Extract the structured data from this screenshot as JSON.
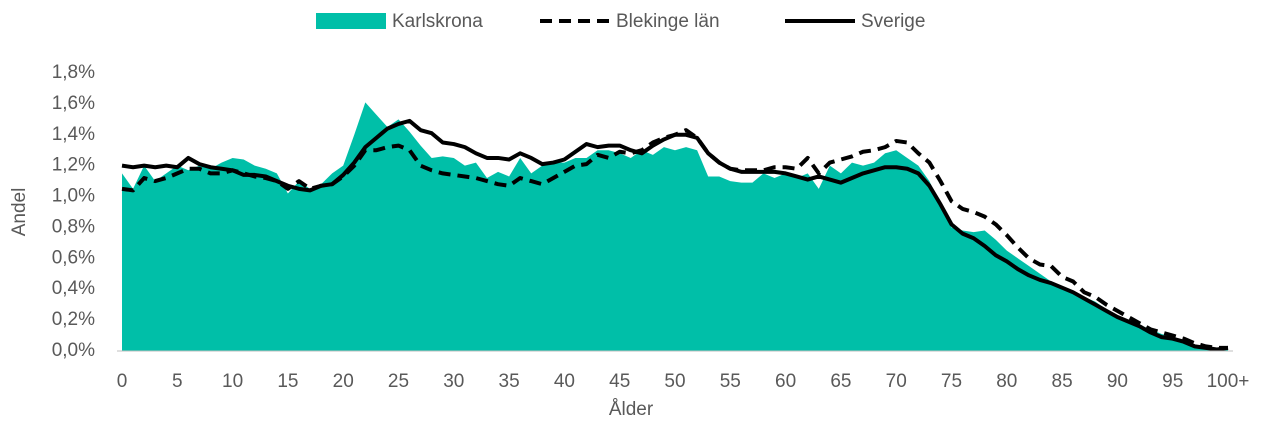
{
  "chart_data": {
    "type": "line",
    "x_label": "Ålder",
    "y_label": "Andel",
    "categories": [
      "0",
      null,
      null,
      null,
      null,
      "5",
      null,
      null,
      null,
      null,
      "10",
      null,
      null,
      null,
      null,
      "15",
      null,
      null,
      null,
      null,
      "20",
      null,
      null,
      null,
      null,
      "25",
      null,
      null,
      null,
      null,
      "30",
      null,
      null,
      null,
      null,
      "35",
      null,
      null,
      null,
      null,
      "40",
      null,
      null,
      null,
      null,
      "45",
      null,
      null,
      null,
      null,
      "50",
      null,
      null,
      null,
      null,
      "55",
      null,
      null,
      null,
      null,
      "60",
      null,
      null,
      null,
      null,
      "65",
      null,
      null,
      null,
      null,
      "70",
      null,
      null,
      null,
      null,
      "75",
      null,
      null,
      null,
      null,
      "80",
      null,
      null,
      null,
      null,
      "85",
      null,
      null,
      null,
      null,
      "90",
      null,
      null,
      null,
      null,
      "95",
      null,
      null,
      null,
      null,
      "100+"
    ],
    "ylim": [
      0,
      1.8
    ],
    "yticks": [
      {
        "value": 0,
        "label": "0,0%"
      },
      {
        "value": 0.2,
        "label": "0,2%"
      },
      {
        "value": 0.4,
        "label": "0,4%"
      },
      {
        "value": 0.6,
        "label": "0,6%"
      },
      {
        "value": 0.8,
        "label": "0,8%"
      },
      {
        "value": 1.0,
        "label": "1,0%"
      },
      {
        "value": 1.2,
        "label": "1,2%"
      },
      {
        "value": 1.4,
        "label": "1,4%"
      },
      {
        "value": 1.6,
        "label": "1,6%"
      },
      {
        "value": 1.8,
        "label": "1,8%"
      }
    ],
    "series": [
      {
        "name": "Karlskrona",
        "type": "area",
        "color": "#00bfa8",
        "values": [
          1.15,
          1.05,
          1.2,
          1.1,
          1.15,
          1.2,
          1.17,
          1.2,
          1.18,
          1.22,
          1.25,
          1.24,
          1.2,
          1.18,
          1.15,
          1.02,
          1.1,
          1.05,
          1.08,
          1.15,
          1.2,
          1.4,
          1.61,
          1.53,
          1.45,
          1.5,
          1.42,
          1.33,
          1.25,
          1.26,
          1.25,
          1.2,
          1.22,
          1.12,
          1.16,
          1.13,
          1.25,
          1.15,
          1.2,
          1.22,
          1.22,
          1.25,
          1.25,
          1.3,
          1.3,
          1.28,
          1.25,
          1.3,
          1.27,
          1.32,
          1.3,
          1.32,
          1.3,
          1.13,
          1.13,
          1.1,
          1.09,
          1.09,
          1.15,
          1.12,
          1.15,
          1.12,
          1.15,
          1.05,
          1.2,
          1.15,
          1.22,
          1.2,
          1.22,
          1.28,
          1.3,
          1.25,
          1.2,
          1.1,
          0.95,
          0.8,
          0.78,
          0.77,
          0.78,
          0.72,
          0.65,
          0.6,
          0.55,
          0.5,
          0.45,
          0.42,
          0.38,
          0.35,
          0.32,
          0.27,
          0.23,
          0.2,
          0.17,
          0.14,
          0.11,
          0.09,
          0.07,
          0.04,
          0.03,
          0.02,
          0.02
        ]
      },
      {
        "name": "Blekinge län",
        "type": "line",
        "dashed": true,
        "color": "#000000",
        "values": [
          1.05,
          1.04,
          1.12,
          1.1,
          1.12,
          1.15,
          1.18,
          1.18,
          1.15,
          1.15,
          1.17,
          1.15,
          1.13,
          1.12,
          1.1,
          1.05,
          1.1,
          1.05,
          1.07,
          1.08,
          1.13,
          1.2,
          1.3,
          1.3,
          1.32,
          1.33,
          1.3,
          1.2,
          1.17,
          1.15,
          1.14,
          1.13,
          1.12,
          1.1,
          1.08,
          1.07,
          1.12,
          1.1,
          1.08,
          1.12,
          1.16,
          1.2,
          1.21,
          1.27,
          1.25,
          1.29,
          1.28,
          1.3,
          1.35,
          1.38,
          1.4,
          1.43,
          1.38,
          1.28,
          1.22,
          1.18,
          1.17,
          1.17,
          1.17,
          1.19,
          1.19,
          1.18,
          1.25,
          1.15,
          1.22,
          1.24,
          1.26,
          1.29,
          1.3,
          1.32,
          1.36,
          1.35,
          1.28,
          1.22,
          1.1,
          0.97,
          0.92,
          0.9,
          0.87,
          0.82,
          0.75,
          0.67,
          0.6,
          0.56,
          0.55,
          0.48,
          0.45,
          0.38,
          0.35,
          0.3,
          0.26,
          0.22,
          0.18,
          0.14,
          0.12,
          0.1,
          0.08,
          0.05,
          0.03,
          0.02,
          0.02
        ]
      },
      {
        "name": "Sverige",
        "type": "line",
        "dashed": false,
        "color": "#000000",
        "values": [
          1.2,
          1.19,
          1.2,
          1.19,
          1.2,
          1.19,
          1.25,
          1.21,
          1.19,
          1.18,
          1.17,
          1.14,
          1.14,
          1.13,
          1.1,
          1.07,
          1.05,
          1.04,
          1.07,
          1.08,
          1.14,
          1.22,
          1.32,
          1.38,
          1.44,
          1.47,
          1.49,
          1.43,
          1.41,
          1.35,
          1.34,
          1.32,
          1.28,
          1.25,
          1.25,
          1.24,
          1.28,
          1.25,
          1.21,
          1.22,
          1.24,
          1.29,
          1.34,
          1.32,
          1.33,
          1.33,
          1.3,
          1.28,
          1.33,
          1.37,
          1.4,
          1.4,
          1.38,
          1.28,
          1.22,
          1.18,
          1.16,
          1.16,
          1.16,
          1.16,
          1.15,
          1.13,
          1.11,
          1.13,
          1.11,
          1.09,
          1.12,
          1.15,
          1.17,
          1.19,
          1.19,
          1.18,
          1.15,
          1.07,
          0.95,
          0.82,
          0.76,
          0.73,
          0.68,
          0.62,
          0.58,
          0.53,
          0.49,
          0.46,
          0.44,
          0.41,
          0.38,
          0.34,
          0.3,
          0.26,
          0.22,
          0.19,
          0.16,
          0.12,
          0.09,
          0.08,
          0.06,
          0.03,
          0.02,
          0.01,
          0.02
        ]
      }
    ]
  }
}
